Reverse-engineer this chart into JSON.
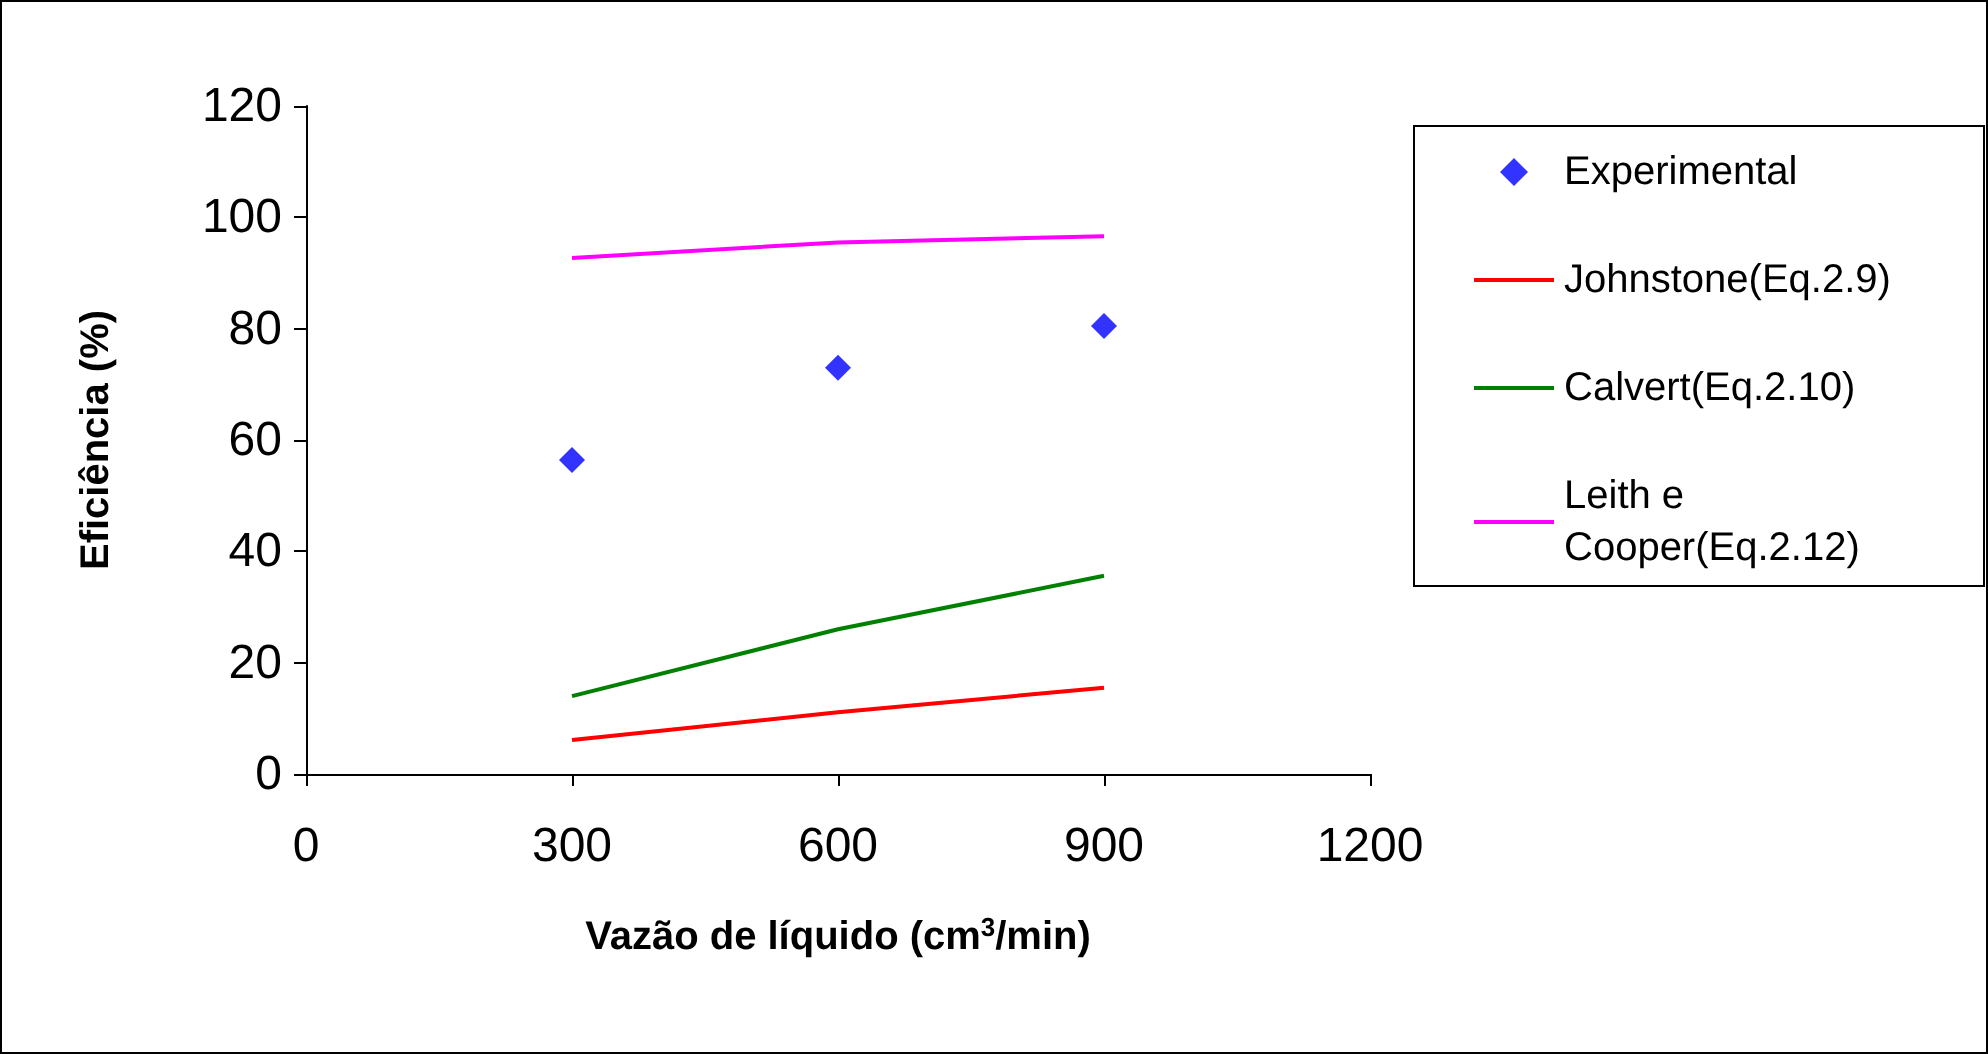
{
  "chart_data": {
    "type": "line",
    "xlabel": "Vazão de líquido (cm$^{3}$/min)",
    "ylabel": "Eficiência (%)",
    "xlim": [
      0,
      1200
    ],
    "xticks": [
      0,
      300,
      600,
      900,
      1200
    ],
    "ylim": [
      0,
      120
    ],
    "yticks": [
      0,
      20,
      40,
      60,
      80,
      100,
      120
    ],
    "grid": false,
    "legend": "right",
    "series": [
      {
        "name": "Experimental",
        "type": "scatter",
        "marker": "diamond",
        "color": "#0000ff",
        "x": [
          300,
          600,
          900
        ],
        "values": [
          56.4,
          73,
          80.5
        ]
      },
      {
        "name": "Johnstone(Eq.2.9)",
        "color": "#ff0000",
        "x": [
          300,
          600,
          900
        ],
        "values": [
          6.1,
          11.1,
          15.5
        ]
      },
      {
        "name": "Calvert(Eq.2.10)",
        "color": "#008000",
        "x": [
          300,
          600,
          900
        ],
        "values": [
          14,
          26,
          35.6
        ]
      },
      {
        "name": "Leith e Cooper(Eq.2.12)",
        "color": "#ff00ff",
        "x": [
          300,
          600,
          900
        ],
        "values": [
          92.7,
          95.5,
          96.6
        ]
      }
    ]
  }
}
